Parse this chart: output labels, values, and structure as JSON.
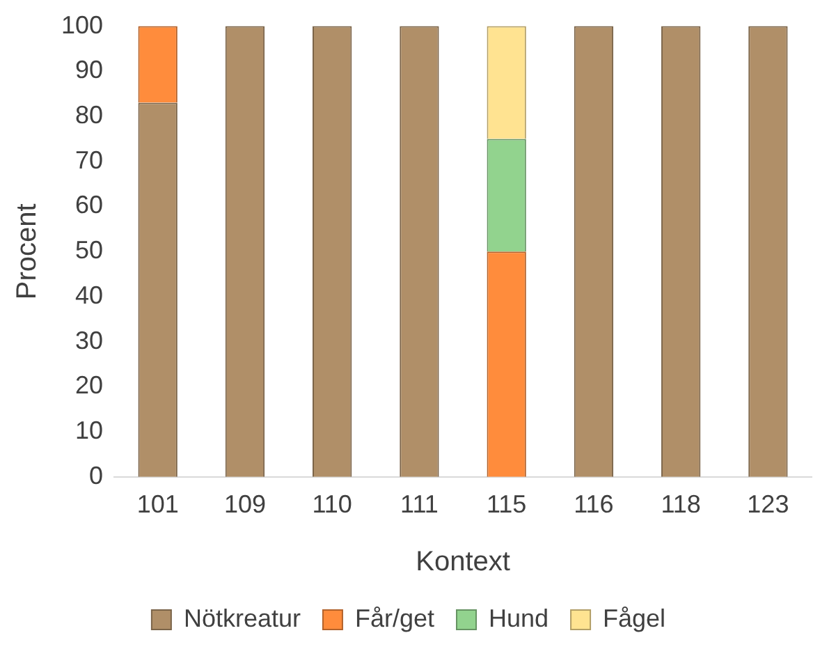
{
  "chart_data": {
    "type": "bar",
    "stacked": true,
    "xlabel": "Kontext",
    "ylabel": "Procent",
    "categories": [
      "101",
      "109",
      "110",
      "111",
      "115",
      "116",
      "118",
      "123"
    ],
    "series": [
      {
        "name": "Nötkreatur",
        "color": "#b08f68",
        "values": [
          83,
          100,
          100,
          100,
          0,
          100,
          100,
          100
        ]
      },
      {
        "name": "Får/get",
        "color": "#ff8c3c",
        "values": [
          17,
          0,
          0,
          0,
          50,
          0,
          0,
          0
        ]
      },
      {
        "name": "Hund",
        "color": "#92d38e",
        "values": [
          0,
          0,
          0,
          0,
          25,
          0,
          0,
          0
        ]
      },
      {
        "name": "Fågel",
        "color": "#ffe391",
        "values": [
          0,
          0,
          0,
          0,
          25,
          0,
          0,
          0
        ]
      }
    ],
    "ylim": [
      0,
      100
    ],
    "yticks": [
      0,
      10,
      20,
      30,
      40,
      50,
      60,
      70,
      80,
      90,
      100
    ],
    "grid": false,
    "legend": "bottom"
  }
}
